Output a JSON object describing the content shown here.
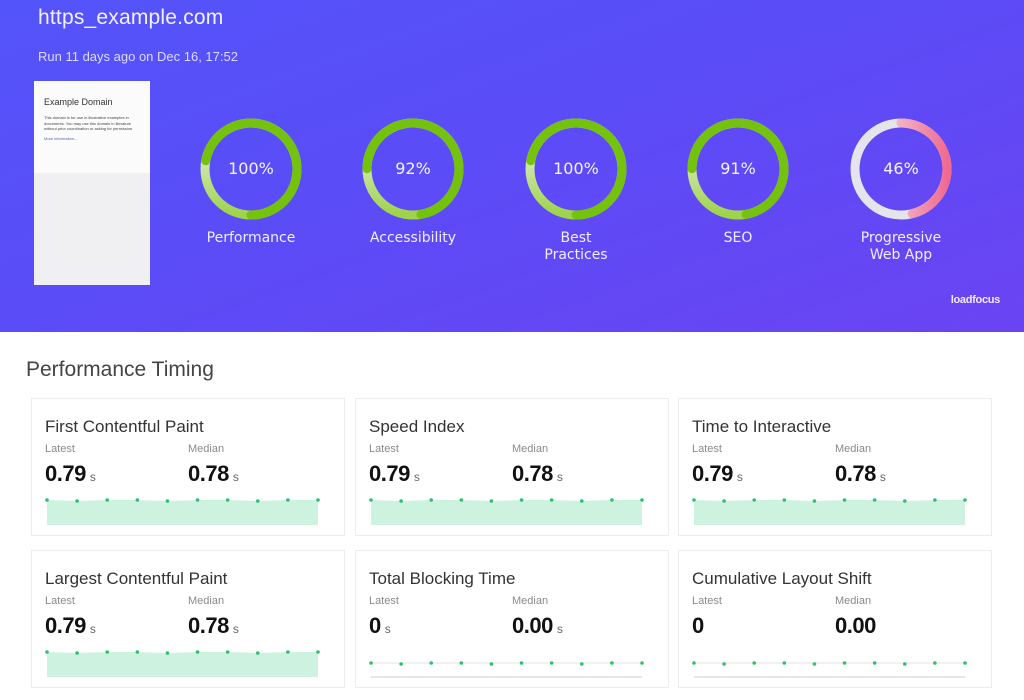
{
  "header": {
    "title": "https_example.com",
    "run_info": "Run 11 days ago on Dec 16, 17:52",
    "brand": "loadfocus"
  },
  "thumbnail": {
    "title": "Example Domain",
    "text": "This domain is for use in illustrative examples in documents. You may use this domain in literature without prior coordination or asking for permission.",
    "link": "More information..."
  },
  "scores": [
    {
      "label": "Performance",
      "value": "100%",
      "percent": 100,
      "color": "#74c20c"
    },
    {
      "label": "Accessibility",
      "value": "92%",
      "percent": 92,
      "color": "#74c20c"
    },
    {
      "label": "Best\nPractices",
      "value": "100%",
      "percent": 100,
      "color": "#74c20c"
    },
    {
      "label": "SEO",
      "value": "91%",
      "percent": 91,
      "color": "#74c20c"
    },
    {
      "label": "Progressive\nWeb App",
      "value": "46%",
      "percent": 46,
      "color": "#f0195a"
    }
  ],
  "timing": {
    "section_title": "Performance Timing",
    "latest_label": "Latest",
    "median_label": "Median",
    "cards": [
      {
        "title": "First Contentful Paint",
        "latest": "0.79",
        "median": "0.78",
        "unit": "s",
        "filled": true
      },
      {
        "title": "Speed Index",
        "latest": "0.79",
        "median": "0.78",
        "unit": "s",
        "filled": true
      },
      {
        "title": "Time to Interactive",
        "latest": "0.79",
        "median": "0.78",
        "unit": "s",
        "filled": true
      },
      {
        "title": "Largest Contentful Paint",
        "latest": "0.79",
        "median": "0.78",
        "unit": "s",
        "filled": true
      },
      {
        "title": "Total Blocking Time",
        "latest": "0",
        "median": "0.00",
        "unit": "s",
        "filled": false
      },
      {
        "title": "Cumulative Layout Shift",
        "latest": "0",
        "median": "0.00",
        "unit": "",
        "filled": false
      }
    ]
  },
  "colors": {
    "hero_start": "#5454fb",
    "hero_end": "#6b44f2",
    "good": "#74c20c",
    "poor": "#f0195a",
    "spark_fill": "#cdf2df",
    "spark_dot": "#2fbf71"
  }
}
